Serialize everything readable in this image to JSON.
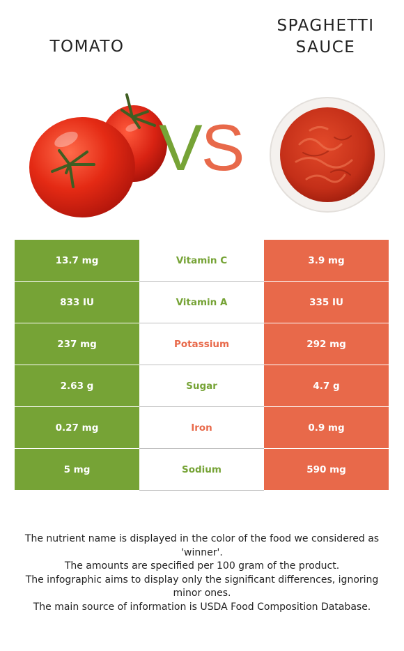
{
  "foods": {
    "left": {
      "name": "TOMATO",
      "color": "#76a336",
      "image": "tomato-image"
    },
    "right": {
      "name": "SPAGHETTI SAUCE",
      "color": "#e8694a",
      "image": "spaghetti-sauce-image"
    }
  },
  "vs": {
    "v": "V",
    "s": "S"
  },
  "rows": [
    {
      "left": "13.7 mg",
      "nutrient": "Vitamin C",
      "right": "3.9 mg",
      "winner": "left"
    },
    {
      "left": "833 IU",
      "nutrient": "Vitamin A",
      "right": "335 IU",
      "winner": "left"
    },
    {
      "left": "237 mg",
      "nutrient": "Potassium",
      "right": "292 mg",
      "winner": "right"
    },
    {
      "left": "2.63 g",
      "nutrient": "Sugar",
      "right": "4.7 g",
      "winner": "left"
    },
    {
      "left": "0.27 mg",
      "nutrient": "Iron",
      "right": "0.9 mg",
      "winner": "right"
    },
    {
      "left": "5 mg",
      "nutrient": "Sodium",
      "right": "590 mg",
      "winner": "left"
    }
  ],
  "footer": [
    "The nutrient name is displayed in the color of the food we considered as 'winner'.",
    "The amounts are specified per 100 gram of the product.",
    "The infographic aims to display only the significant differences, ignoring minor ones.",
    "The main source of information is USDA Food Composition Database."
  ]
}
